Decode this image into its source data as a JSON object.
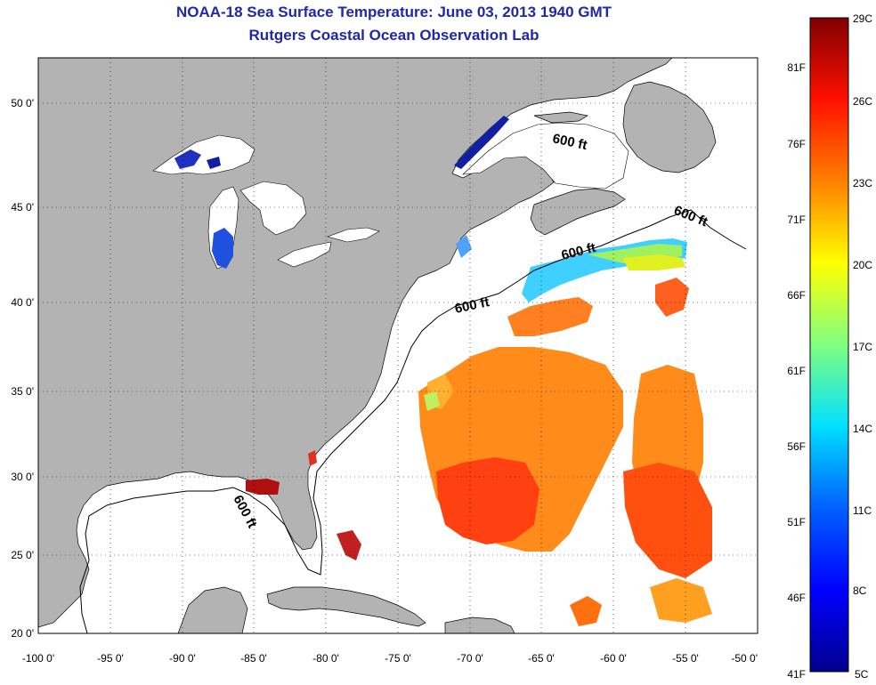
{
  "header": {
    "title": "NOAA-18 Sea Surface Temperature:  June 03, 2013 1940 GMT",
    "subtitle": "Rutgers Coastal Ocean Observation Lab"
  },
  "axes": {
    "x_ticks": [
      "-100 0'",
      "-95 0'",
      "-90 0'",
      "-85 0'",
      "-80 0'",
      "-75 0'",
      "-70 0'",
      "-65 0'",
      "-60 0'",
      "-55 0'",
      "-50 0'"
    ],
    "y_ticks": [
      "20 0'",
      "25 0'",
      "30 0'",
      "35 0'",
      "40 0'",
      "45 0'",
      "50 0'"
    ],
    "lon_range": [
      -100,
      -50
    ],
    "lat_range": [
      20,
      52
    ]
  },
  "isobath_label": "600 ft",
  "colorbar": {
    "celsius": [
      "29C",
      "26C",
      "23C",
      "20C",
      "17C",
      "14C",
      "11C",
      "8C",
      "5C"
    ],
    "fahrenheit": [
      "81F",
      "76F",
      "71F",
      "66F",
      "61F",
      "56F",
      "51F",
      "46F",
      "41F"
    ],
    "colors": [
      "#00008f",
      "#0000ff",
      "#0080ff",
      "#00ffff",
      "#80ff80",
      "#ffff00",
      "#ff8000",
      "#ff0000",
      "#800000"
    ]
  },
  "colors": {
    "land": "#b3b3b3",
    "water": "#ffffff",
    "title": "#1f28a8"
  }
}
